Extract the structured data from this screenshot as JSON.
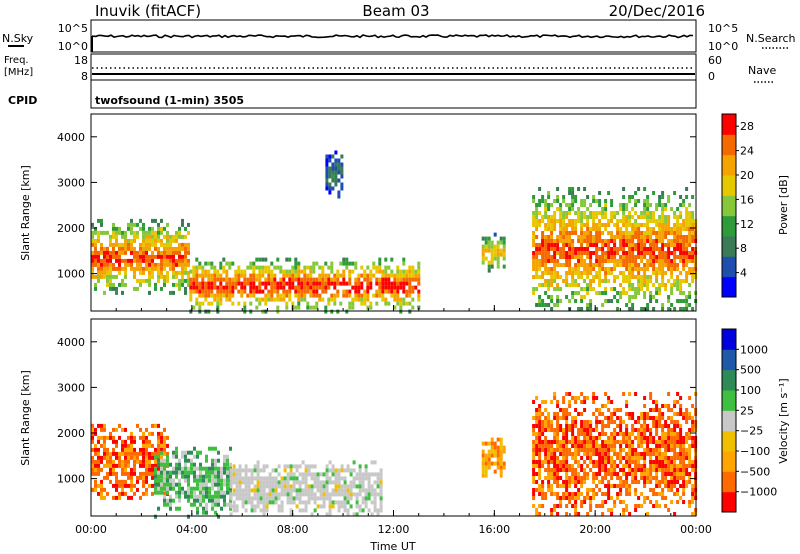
{
  "header": {
    "station": "Inuvik (fitACF)",
    "beam": "Beam 03",
    "date": "20/Dec/2016"
  },
  "top_panel": {
    "left_label": "N.Sky",
    "right_label": "N.Search",
    "left_ticks": [
      "10^5",
      "10^0"
    ],
    "right_ticks": [
      "10^5",
      "10^0"
    ]
  },
  "freq_panel": {
    "left_label_1": "Freq.",
    "left_label_2": "[MHz]",
    "right_label": "Nave",
    "left_ticks": [
      "18",
      "8"
    ],
    "right_ticks": [
      "60",
      "0"
    ]
  },
  "cpid": {
    "label": "CPID",
    "text": "twofsound (1-min) 3505"
  },
  "colors": {
    "power": [
      "#0000ff",
      "#1f4fae",
      "#3a7a55",
      "#2e9a3a",
      "#86c83a",
      "#e6c800",
      "#f5a300",
      "#f56a00",
      "#ff0000"
    ],
    "velocity": [
      "#ff0000",
      "#ff6a00",
      "#ffa500",
      "#f0c000",
      "#c8c8c8",
      "#3fbf3f",
      "#2e8b57",
      "#1e5aa8",
      "#0000dd"
    ]
  },
  "chart_data": [
    {
      "type": "heatmap",
      "name": "power",
      "ylabel": "Slant Range [km]",
      "xlabel": "",
      "xlim": [
        "00:00",
        "24:00"
      ],
      "ylim": [
        180,
        4500
      ],
      "x_tick_labels": [
        "00:00",
        "04:00",
        "08:00",
        "12:00",
        "16:00",
        "20:00",
        "00:00"
      ],
      "y_tick_labels": [
        "1000",
        "2000",
        "3000",
        "4000"
      ],
      "colorbar": {
        "label": "Power [dB]",
        "tick_labels": [
          "4",
          "8",
          "12",
          "16",
          "20",
          "24",
          "28"
        ],
        "range": [
          0,
          30
        ]
      },
      "regions": [
        {
          "t": [
            0.0,
            3.9
          ],
          "range_km": [
            600,
            2200
          ],
          "peak_db": 26
        },
        {
          "t": [
            3.9,
            13.0
          ],
          "range_km": [
            200,
            1350
          ],
          "peak_db": 28
        },
        {
          "t": [
            9.3,
            10.0
          ],
          "range_km": [
            2700,
            3700
          ],
          "peak_db": 6
        },
        {
          "t": [
            15.5,
            16.4
          ],
          "range_km": [
            1100,
            1900
          ],
          "peak_db": 20
        },
        {
          "t": [
            17.5,
            24.0
          ],
          "range_km": [
            200,
            2900
          ],
          "peak_db": 26
        }
      ]
    },
    {
      "type": "heatmap",
      "name": "velocity",
      "ylabel": "Slant Range [km]",
      "xlabel": "Time UT",
      "xlim": [
        "00:00",
        "24:00"
      ],
      "ylim": [
        180,
        4500
      ],
      "x_tick_labels": [
        "00:00",
        "04:00",
        "08:00",
        "12:00",
        "16:00",
        "20:00",
        "00:00"
      ],
      "y_tick_labels": [
        "1000",
        "2000",
        "3000",
        "4000"
      ],
      "colorbar": {
        "label": "Velocity [m s⁻¹]",
        "tick_labels": [
          "1000",
          "500",
          "100",
          "25",
          "−25",
          "−100",
          "−500",
          "−1000"
        ]
      },
      "regions": [
        {
          "t": [
            0.0,
            3.0
          ],
          "range_km": [
            600,
            2200
          ],
          "velocity": -300
        },
        {
          "t": [
            2.5,
            5.5
          ],
          "range_km": [
            200,
            1700
          ],
          "velocity": 150
        },
        {
          "t": [
            5.5,
            11.5
          ],
          "range_km": [
            200,
            1400
          ],
          "velocity": 0
        },
        {
          "t": [
            15.5,
            16.4
          ],
          "range_km": [
            1100,
            1900
          ],
          "velocity": -200
        },
        {
          "t": [
            17.5,
            24.0
          ],
          "range_km": [
            200,
            2900
          ],
          "velocity": -300
        }
      ]
    }
  ]
}
